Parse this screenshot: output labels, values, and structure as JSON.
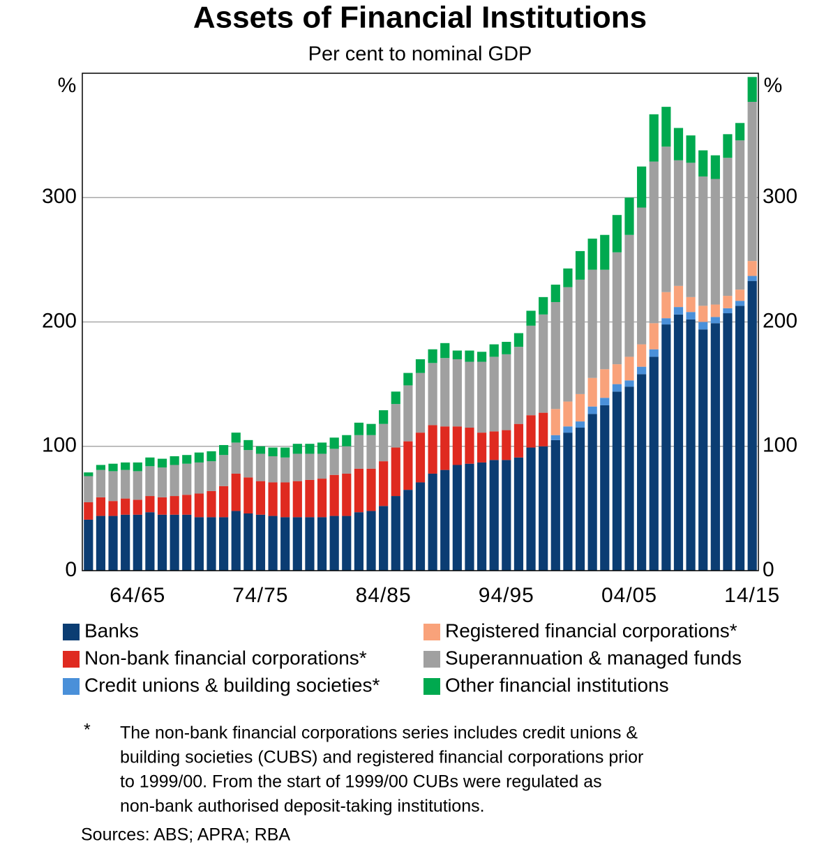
{
  "chart_data": {
    "type": "stacked_bar",
    "title": "Assets of Financial Institutions",
    "subtitle": "Per cent to nominal GDP",
    "y_unit": "%",
    "categories": [
      null,
      null,
      null,
      null,
      "64/65",
      null,
      null,
      null,
      null,
      null,
      null,
      null,
      null,
      null,
      "74/75",
      null,
      null,
      null,
      null,
      null,
      null,
      null,
      null,
      null,
      "84/85",
      null,
      null,
      null,
      null,
      null,
      null,
      null,
      null,
      null,
      "94/95",
      null,
      null,
      null,
      null,
      null,
      null,
      null,
      null,
      null,
      "04/05",
      null,
      null,
      null,
      null,
      null,
      null,
      null,
      null,
      null,
      "14/15"
    ],
    "ylim": [
      0,
      400
    ],
    "yticks": [
      0,
      100,
      200,
      300
    ],
    "grid": true,
    "series": [
      {
        "name": "Banks",
        "color": "#0b3d73",
        "values": [
          41,
          44,
          44,
          45,
          45,
          47,
          45,
          45,
          45,
          43,
          43,
          43,
          48,
          46,
          45,
          44,
          43,
          43,
          43,
          43,
          44,
          44,
          47,
          48,
          52,
          60,
          65,
          71,
          78,
          81,
          85,
          86,
          87,
          89,
          89,
          91,
          99,
          100,
          105,
          111,
          115,
          126,
          133,
          144,
          148,
          158,
          172,
          198,
          206,
          202,
          194,
          199,
          207,
          213,
          233
        ]
      },
      {
        "name": "Non-bank financial corporations*",
        "color": "#df2a20",
        "values": [
          14,
          15,
          12,
          13,
          12,
          13,
          14,
          15,
          16,
          19,
          21,
          25,
          30,
          29,
          27,
          27,
          28,
          29,
          30,
          31,
          33,
          34,
          35,
          34,
          36,
          39,
          39,
          40,
          39,
          35,
          31,
          29,
          24,
          23,
          24,
          27,
          26,
          27,
          null,
          null,
          null,
          null,
          null,
          null,
          null,
          null,
          null,
          null,
          null,
          null,
          null,
          null,
          null,
          null,
          null
        ]
      },
      {
        "name": "Credit unions & building societies*",
        "color": "#4a90d9",
        "values": [
          null,
          null,
          null,
          null,
          null,
          null,
          null,
          null,
          null,
          null,
          null,
          null,
          null,
          null,
          null,
          null,
          null,
          null,
          null,
          null,
          null,
          null,
          null,
          null,
          null,
          null,
          null,
          null,
          null,
          null,
          null,
          null,
          null,
          null,
          null,
          null,
          null,
          null,
          4,
          5,
          5,
          6,
          6,
          6,
          5,
          6,
          6,
          5,
          6,
          6,
          6,
          5,
          4,
          4,
          4
        ]
      },
      {
        "name": "Registered financial corporations*",
        "color": "#f9a27a",
        "values": [
          null,
          null,
          null,
          null,
          null,
          null,
          null,
          null,
          null,
          null,
          null,
          null,
          null,
          null,
          null,
          null,
          null,
          null,
          null,
          null,
          null,
          null,
          null,
          null,
          null,
          null,
          null,
          null,
          null,
          null,
          null,
          null,
          null,
          null,
          null,
          null,
          null,
          null,
          21,
          20,
          22,
          23,
          23,
          16,
          19,
          18,
          21,
          21,
          17,
          12,
          13,
          10,
          10,
          9,
          12
        ]
      },
      {
        "name": "Superannuation & managed funds",
        "color": "#a0a0a0",
        "values": [
          21,
          22,
          24,
          23,
          23,
          24,
          24,
          25,
          25,
          25,
          24,
          25,
          25,
          22,
          22,
          21,
          20,
          22,
          21,
          20,
          21,
          22,
          27,
          27,
          30,
          35,
          45,
          48,
          50,
          55,
          54,
          53,
          57,
          60,
          61,
          62,
          72,
          79,
          86,
          92,
          92,
          87,
          80,
          90,
          98,
          110,
          130,
          117,
          101,
          108,
          104,
          101,
          111,
          120,
          128
        ]
      },
      {
        "name": "Other financial institutions",
        "color": "#00a94f",
        "values": [
          3,
          4,
          6,
          6,
          7,
          7,
          7,
          7,
          7,
          8,
          8,
          8,
          8,
          8,
          6,
          7,
          8,
          8,
          8,
          9,
          9,
          9,
          10,
          9,
          11,
          10,
          10,
          11,
          11,
          12,
          7,
          9,
          8,
          10,
          10,
          11,
          12,
          14,
          14,
          15,
          23,
          25,
          28,
          30,
          30,
          33,
          38,
          32,
          26,
          22,
          21,
          19,
          19,
          14,
          20
        ]
      }
    ],
    "footnote": {
      "marker": "*",
      "lines": [
        "The non-bank financial corporations series includes credit unions &",
        "building societies (CUBS) and registered financial corporations prior",
        "to 1999/00. From the start of 1999/00 CUBs were regulated as",
        "non-bank authorised deposit-taking institutions."
      ]
    },
    "sources": "Sources:  ABS; APRA; RBA"
  }
}
